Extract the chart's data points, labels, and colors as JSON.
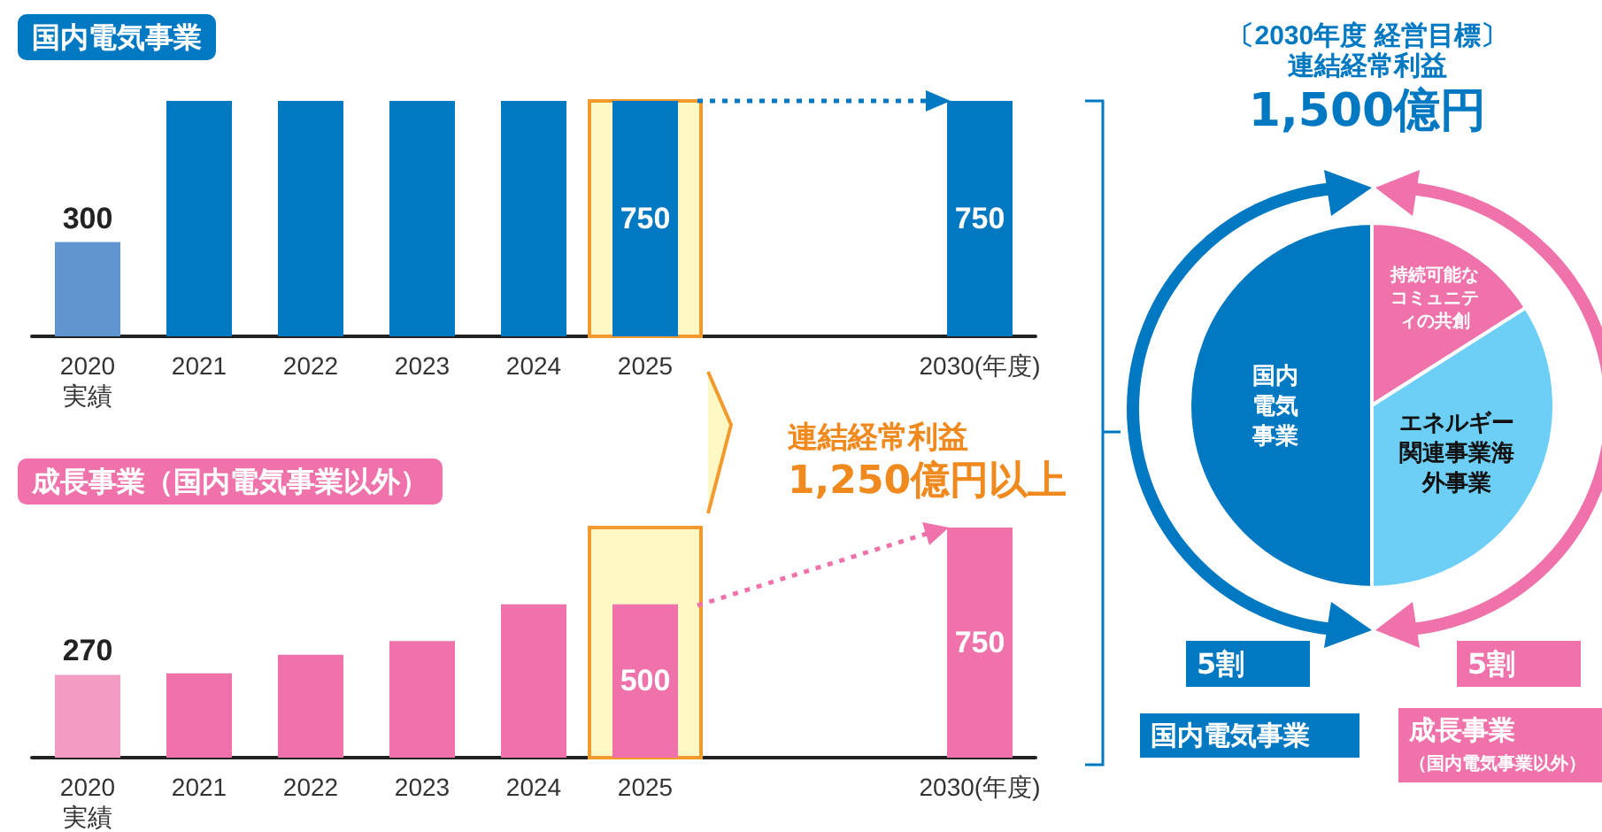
{
  "chart_data": [
    {
      "type": "bar",
      "title": "国内電気事業",
      "categories": [
        "2020\n実績",
        "2021",
        "2022",
        "2023",
        "2024",
        "2025",
        null,
        null,
        "2030(年度)"
      ],
      "values": [
        300,
        750,
        750,
        750,
        750,
        750,
        null,
        null,
        750
      ],
      "value_labels": [
        "300",
        null,
        null,
        null,
        null,
        "750",
        null,
        null,
        "750"
      ],
      "colors": [
        "#6096d0",
        "#0079c2",
        "#0079c2",
        "#0079c2",
        "#0079c2",
        "#0079c2",
        null,
        null,
        "#0079c2"
      ],
      "bands": [
        {
          "axis": "x",
          "from": "2025",
          "to": "2025",
          "color": "#fff8c4"
        }
      ],
      "legend": false
    },
    {
      "type": "bar",
      "title": "成長事業（国内電気事業以外）",
      "categories": [
        "2020\n実績",
        "2021",
        "2022",
        "2023",
        "2024",
        "2025",
        null,
        null,
        "2030(年度)"
      ],
      "values": [
        270,
        275,
        335,
        380,
        500,
        500,
        null,
        null,
        750
      ],
      "value_labels": [
        "270",
        null,
        null,
        null,
        null,
        "500",
        null,
        null,
        "750"
      ],
      "colors": [
        "#f29cc3",
        "#ef72aa",
        "#ef72aa",
        "#ef72aa",
        "#ef72aa",
        "#ef72aa",
        null,
        null,
        "#ef72aa"
      ],
      "bands": [
        {
          "axis": "x",
          "from": "2025",
          "to": "2025",
          "color": "#fff8c4"
        }
      ],
      "annotations": [
        "連結経常利益",
        "1,250億円以上"
      ],
      "legend": false
    },
    {
      "type": "pie",
      "title": "〔2030年度 経営目標〕",
      "subtitle": "連結経常利益",
      "categories": [
        "持続可能なコミュニティの共創",
        "エネルギー関連事業海外事業",
        "国内電気事業"
      ],
      "values": [
        16,
        34,
        50
      ],
      "colors": [
        "#ef72aa",
        "#6dcff6",
        "#0079c2"
      ],
      "annotations": [
        "1,500億円",
        "5割",
        "5割",
        "国内電気事業",
        "成長事業",
        "（国内電気事業以外）"
      ],
      "legend": false
    }
  ]
}
